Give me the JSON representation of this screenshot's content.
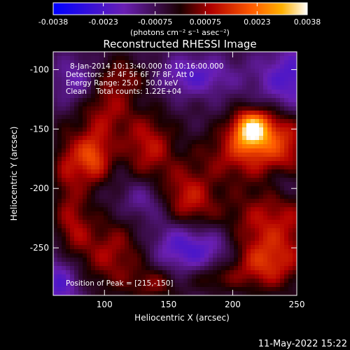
{
  "chart_data": {
    "type": "heatmap",
    "title": "Reconstructed RHESSI Image",
    "xlabel": "Heliocentric X (arcsec)",
    "ylabel": "Heliocentric Y (arcsec)",
    "xlim": [
      60,
      250
    ],
    "ylim": [
      -290,
      -85
    ],
    "x_ticks": [
      100,
      150,
      200,
      250
    ],
    "y_ticks": [
      -100,
      -150,
      -200,
      -250
    ],
    "colorbar": {
      "range": [
        -0.0038,
        0.0038
      ],
      "ticks": [
        "-0.0038",
        "-0.0023",
        "-0.00075",
        "0.00075",
        "0.0023",
        "0.0038"
      ],
      "tick_values": [
        -0.0038,
        -0.0023,
        -0.00075,
        0.00075,
        0.0023,
        0.0038
      ],
      "units": "(photons cm⁻² s⁻¹ asec⁻²)"
    },
    "annotations": {
      "time_range": "8-Jan-2014 10:13:40.000 to 10:16:00.000",
      "detectors": "Detectors: 3F 4F 5F 6F 7F 8F, Att 0",
      "energy": "Energy Range: 25.0 - 50.0 keV",
      "clean": "Clean    Total counts: 1.22E+04",
      "peak": "Position of Peak = [215,-150]"
    },
    "peak": [
      215,
      -150
    ],
    "sources": [
      {
        "x": 215,
        "y": -150,
        "flux": 0.0038,
        "sx": 10,
        "sy": 11
      },
      {
        "x": 205,
        "y": -170,
        "flux": 0.0016,
        "sx": 20,
        "sy": 16
      },
      {
        "x": 240,
        "y": -160,
        "flux": 0.0018,
        "sx": 15,
        "sy": 22
      },
      {
        "x": 90,
        "y": -175,
        "flux": 0.0022,
        "sx": 10,
        "sy": 15
      },
      {
        "x": 100,
        "y": -130,
        "flux": 0.0015,
        "sx": 16,
        "sy": 24
      },
      {
        "x": 135,
        "y": -165,
        "flux": 0.0016,
        "sx": 14,
        "sy": 20
      },
      {
        "x": 165,
        "y": -210,
        "flux": 0.0018,
        "sx": 15,
        "sy": 20
      },
      {
        "x": 230,
        "y": -230,
        "flux": 0.0016,
        "sx": 28,
        "sy": 22
      },
      {
        "x": 225,
        "y": -265,
        "flux": 0.0017,
        "sx": 20,
        "sy": 15
      },
      {
        "x": 105,
        "y": -255,
        "flux": 0.0014,
        "sx": 18,
        "sy": 22
      },
      {
        "x": 75,
        "y": -230,
        "flux": 0.0013,
        "sx": 10,
        "sy": 22
      },
      {
        "x": 70,
        "y": -180,
        "flux": 0.0011,
        "sx": 8,
        "sy": 20
      },
      {
        "x": 120,
        "y": -105,
        "flux": 0.0008,
        "sx": 15,
        "sy": 10
      },
      {
        "x": 140,
        "y": -280,
        "flux": 0.0011,
        "sx": 14,
        "sy": 10
      },
      {
        "x": 185,
        "y": -275,
        "flux": 0.0009,
        "sx": 12,
        "sy": 8
      },
      {
        "x": 245,
        "y": -110,
        "flux": -0.0018,
        "sx": 18,
        "sy": 20
      },
      {
        "x": 170,
        "y": -105,
        "flux": -0.0015,
        "sx": 22,
        "sy": 12
      },
      {
        "x": 80,
        "y": -110,
        "flux": -0.0014,
        "sx": 14,
        "sy": 15
      },
      {
        "x": 180,
        "y": -250,
        "flux": -0.0015,
        "sx": 18,
        "sy": 14
      },
      {
        "x": 155,
        "y": -245,
        "flux": -0.0012,
        "sx": 14,
        "sy": 18
      },
      {
        "x": 65,
        "y": -280,
        "flux": -0.0016,
        "sx": 12,
        "sy": 18
      },
      {
        "x": 130,
        "y": -210,
        "flux": -0.001,
        "sx": 12,
        "sy": 12
      },
      {
        "x": 240,
        "y": -195,
        "flux": -0.0009,
        "sx": 10,
        "sy": 10
      }
    ]
  },
  "footer": {
    "timestamp": "11-May-2022 15:22"
  }
}
